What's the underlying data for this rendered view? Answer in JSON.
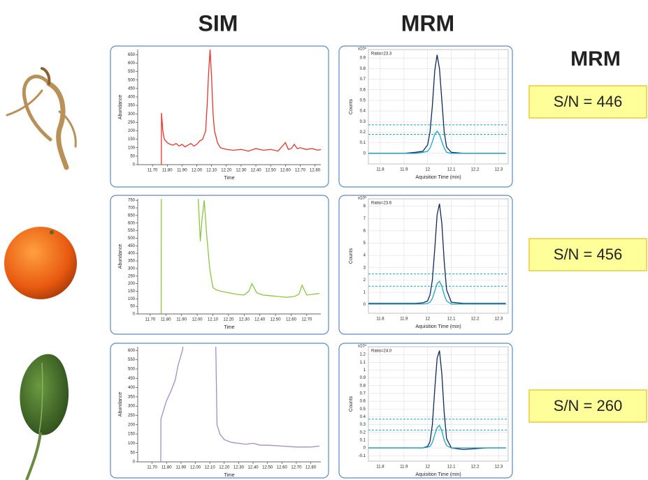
{
  "headers": {
    "sim": "SIM",
    "mrm": "MRM",
    "side": "MRM"
  },
  "sn_labels": [
    "S/N = 446",
    "S/N = 456",
    "S/N = 260"
  ],
  "chart_data": [
    {
      "type": "line",
      "xlabel": "Time",
      "ylabel": "Abundance",
      "grid": false,
      "xlim": [
        11.6,
        12.84
      ],
      "ylim": [
        0,
        680
      ],
      "xticks": [
        {
          "value": 11.7,
          "label": "11.70"
        },
        {
          "value": 11.8,
          "label": "11.80"
        },
        {
          "value": 11.9,
          "label": "11.90"
        },
        {
          "value": 12.0,
          "label": "12.00"
        },
        {
          "value": 12.1,
          "label": "12.10"
        },
        {
          "value": 12.2,
          "label": "12.20"
        },
        {
          "value": 12.3,
          "label": "12.30"
        },
        {
          "value": 12.4,
          "label": "12.40"
        },
        {
          "value": 12.5,
          "label": "12.50"
        },
        {
          "value": 12.6,
          "label": "12.60"
        },
        {
          "value": 12.7,
          "label": "12.70"
        },
        {
          "value": 12.8,
          "label": "12.80"
        }
      ],
      "yticks": [
        0,
        50,
        100,
        150,
        200,
        250,
        300,
        350,
        400,
        450,
        500,
        550,
        600,
        650
      ],
      "x": [
        11.76,
        11.761,
        11.77,
        11.78,
        11.8,
        11.82,
        11.84,
        11.86,
        11.88,
        11.9,
        11.92,
        11.94,
        11.96,
        11.98,
        12.0,
        12.02,
        12.04,
        12.06,
        12.07,
        12.08,
        12.09,
        12.1,
        12.11,
        12.12,
        12.14,
        12.16,
        12.2,
        12.25,
        12.3,
        12.35,
        12.4,
        12.45,
        12.5,
        12.55,
        12.58,
        12.6,
        12.62,
        12.64,
        12.66,
        12.68,
        12.7,
        12.74,
        12.78,
        12.82,
        12.84
      ],
      "series": [
        {
          "color": "#e8352b",
          "values": [
            0,
            305,
            200,
            150,
            130,
            120,
            115,
            125,
            110,
            120,
            105,
            115,
            125,
            110,
            120,
            140,
            150,
            200,
            350,
            540,
            680,
            520,
            300,
            200,
            130,
            100,
            90,
            85,
            90,
            80,
            95,
            85,
            90,
            80,
            110,
            130,
            90,
            95,
            120,
            95,
            100,
            90,
            95,
            85,
            90
          ]
        }
      ]
    },
    {
      "type": "line",
      "xlabel": "Aquisition Time (min)",
      "ylabel": "Counts",
      "grid": true,
      "y_multiplier": "x10⁴",
      "annotation": "Ratio=23.3",
      "xlim": [
        11.75,
        12.34
      ],
      "ylim": [
        -0.1,
        0.98
      ],
      "xticks": [
        11.8,
        11.9,
        12,
        12.1,
        12.2,
        12.3
      ],
      "yticks": [
        0,
        0.1,
        0.2,
        0.3,
        0.4,
        0.5,
        0.6,
        0.7,
        0.8,
        0.9
      ],
      "ref_lines": [
        0.27,
        0.18
      ],
      "ref_color": "#1ba7c9",
      "x": [
        11.75,
        11.8,
        11.85,
        11.9,
        11.95,
        11.98,
        12.0,
        12.01,
        12.02,
        12.03,
        12.04,
        12.05,
        12.06,
        12.07,
        12.08,
        12.1,
        12.15,
        12.2,
        12.25,
        12.3,
        12.33
      ],
      "series": [
        {
          "color": "#0d2a5a",
          "values": [
            0,
            0,
            0,
            0,
            0.01,
            0.02,
            0.08,
            0.2,
            0.45,
            0.78,
            0.93,
            0.8,
            0.5,
            0.2,
            0.06,
            0.01,
            0,
            0,
            0,
            0,
            0
          ]
        },
        {
          "color": "#1ba7c9",
          "values": [
            0,
            0,
            0,
            0,
            0,
            0.01,
            0.02,
            0.05,
            0.11,
            0.18,
            0.21,
            0.18,
            0.11,
            0.05,
            0.01,
            0,
            0,
            0,
            0,
            0,
            0
          ]
        }
      ]
    },
    {
      "type": "line",
      "xlabel": "Time",
      "ylabel": "Abundance",
      "grid": false,
      "xlim": [
        11.62,
        12.79
      ],
      "ylim": [
        0,
        760
      ],
      "xticks": [
        {
          "value": 11.7,
          "label": "11.70"
        },
        {
          "value": 11.8,
          "label": "11.80"
        },
        {
          "value": 11.9,
          "label": "11.90"
        },
        {
          "value": 12.0,
          "label": "12.00"
        },
        {
          "value": 12.1,
          "label": "12.10"
        },
        {
          "value": 12.2,
          "label": "12.20"
        },
        {
          "value": 12.3,
          "label": "12.30"
        },
        {
          "value": 12.4,
          "label": "12.40"
        },
        {
          "value": 12.5,
          "label": "12.50"
        },
        {
          "value": 12.6,
          "label": "12.60"
        },
        {
          "value": 12.7,
          "label": "12.70"
        }
      ],
      "yticks": [
        0,
        50,
        100,
        150,
        200,
        250,
        300,
        350,
        400,
        450,
        500,
        550,
        600,
        650,
        700,
        750
      ],
      "x": [
        11.77,
        11.771,
        11.9,
        12.0,
        12.02,
        12.03,
        12.045,
        12.06,
        12.08,
        12.1,
        12.12,
        12.15,
        12.2,
        12.25,
        12.3,
        12.33,
        12.35,
        12.38,
        12.42,
        12.47,
        12.52,
        12.57,
        12.62,
        12.65,
        12.67,
        12.7,
        12.74,
        12.78
      ],
      "series": [
        {
          "color": "#8cc63f",
          "values": [
            0,
            900,
            null,
            900,
            480,
            620,
            750,
            530,
            300,
            175,
            160,
            150,
            140,
            130,
            125,
            150,
            200,
            140,
            125,
            120,
            115,
            110,
            115,
            130,
            190,
            125,
            130,
            135
          ]
        }
      ]
    },
    {
      "type": "line",
      "xlabel": "Aquisition Time (min)",
      "ylabel": "Counts",
      "grid": true,
      "y_multiplier": "x10³",
      "annotation": "Ratio=23.6",
      "xlim": [
        11.75,
        12.34
      ],
      "ylim": [
        -0.7,
        8.6
      ],
      "xticks": [
        11.8,
        11.9,
        12,
        12.1,
        12.2,
        12.3
      ],
      "yticks": [
        0,
        1,
        2,
        3,
        4,
        5,
        6,
        7,
        8
      ],
      "ref_lines": [
        2.5,
        1.5
      ],
      "ref_color": "#1ba7c9",
      "x": [
        11.75,
        11.8,
        11.85,
        11.9,
        11.95,
        11.98,
        12.0,
        12.01,
        12.02,
        12.03,
        12.04,
        12.05,
        12.06,
        12.07,
        12.08,
        12.1,
        12.15,
        12.2,
        12.25,
        12.3,
        12.33
      ],
      "series": [
        {
          "color": "#0d2a5a",
          "values": [
            0.1,
            0.1,
            0.1,
            0.1,
            0.1,
            0.15,
            0.3,
            0.8,
            2.0,
            4.5,
            7.3,
            8.2,
            6.6,
            3.5,
            1.2,
            0.2,
            0.1,
            0.1,
            0.1,
            0.1,
            0.1
          ]
        },
        {
          "color": "#1ba7c9",
          "values": [
            0.05,
            0.05,
            0.05,
            0.05,
            0.05,
            0.06,
            0.1,
            0.2,
            0.5,
            1.1,
            1.7,
            1.9,
            1.5,
            0.8,
            0.3,
            0.05,
            0.05,
            0.05,
            0.05,
            0.05,
            0.05
          ]
        }
      ]
    },
    {
      "type": "line",
      "xlabel": "Time",
      "ylabel": "Abundance",
      "grid": false,
      "xlim": [
        11.6,
        12.87
      ],
      "ylim": [
        0,
        620
      ],
      "xticks": [
        {
          "value": 11.7,
          "label": "11.70"
        },
        {
          "value": 11.8,
          "label": "11.80"
        },
        {
          "value": 11.9,
          "label": "11.90"
        },
        {
          "value": 12.0,
          "label": "12.00"
        },
        {
          "value": 12.1,
          "label": "12.10"
        },
        {
          "value": 12.2,
          "label": "12.20"
        },
        {
          "value": 12.3,
          "label": "12.30"
        },
        {
          "value": 12.4,
          "label": "12.40"
        },
        {
          "value": 12.5,
          "label": "12.50"
        },
        {
          "value": 12.6,
          "label": "12.60"
        },
        {
          "value": 12.7,
          "label": "12.70"
        },
        {
          "value": 12.8,
          "label": "12.80"
        }
      ],
      "yticks": [
        0,
        50,
        100,
        150,
        200,
        250,
        300,
        350,
        400,
        450,
        500,
        550,
        600
      ],
      "x": [
        11.76,
        11.761,
        11.78,
        11.8,
        11.83,
        11.86,
        11.88,
        11.91,
        11.93,
        12.0,
        12.14,
        12.15,
        12.17,
        12.2,
        12.25,
        12.3,
        12.35,
        12.4,
        12.45,
        12.5,
        12.6,
        12.7,
        12.8,
        12.86
      ],
      "series": [
        {
          "color": "#a58bc4",
          "values": [
            0,
            230,
            280,
            330,
            380,
            440,
            520,
            600,
            700,
            null,
            700,
            200,
            150,
            120,
            105,
            100,
            95,
            100,
            90,
            90,
            85,
            80,
            80,
            85
          ]
        }
      ]
    },
    {
      "type": "line",
      "xlabel": "Aquisition Time (min)",
      "ylabel": "Counts",
      "grid": true,
      "y_multiplier": "x10⁴",
      "annotation": "Ratio=24.0",
      "xlim": [
        11.75,
        12.34
      ],
      "ylim": [
        -0.17,
        1.3
      ],
      "xticks": [
        11.8,
        11.9,
        12,
        12.1,
        12.2,
        12.3
      ],
      "yticks": [
        -0.1,
        0,
        0.1,
        0.2,
        0.3,
        0.4,
        0.5,
        0.6,
        0.7,
        0.8,
        0.9,
        1,
        1.1,
        1.2
      ],
      "ref_lines": [
        0.37,
        0.23
      ],
      "ref_color": "#1ba7c9",
      "x": [
        11.75,
        11.8,
        11.85,
        11.9,
        11.95,
        11.98,
        12.0,
        12.01,
        12.02,
        12.03,
        12.04,
        12.05,
        12.06,
        12.07,
        12.08,
        12.1,
        12.15,
        12.2,
        12.25,
        12.3,
        12.33
      ],
      "series": [
        {
          "color": "#0d2a5a",
          "values": [
            0,
            0,
            0,
            0,
            0,
            0,
            0.02,
            0.08,
            0.3,
            0.75,
            1.15,
            1.25,
            0.95,
            0.45,
            0.12,
            0,
            -0.02,
            -0.01,
            0,
            0,
            0
          ]
        },
        {
          "color": "#1ba7c9",
          "values": [
            0,
            0,
            0,
            0,
            0,
            0,
            0.01,
            0.02,
            0.07,
            0.17,
            0.26,
            0.29,
            0.22,
            0.1,
            0.03,
            0,
            0,
            0,
            0,
            0,
            0
          ]
        }
      ]
    }
  ]
}
